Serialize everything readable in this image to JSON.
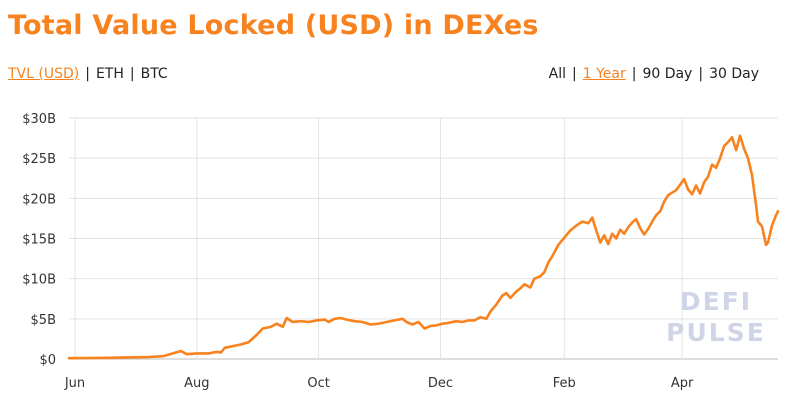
{
  "header": {
    "title": "Total Value Locked (USD) in DEXes"
  },
  "controls": {
    "currency": [
      {
        "label": "TVL (USD)",
        "active": true
      },
      {
        "label": "ETH",
        "active": false
      },
      {
        "label": "BTC",
        "active": false
      }
    ],
    "range": [
      {
        "label": "All",
        "active": false
      },
      {
        "label": "1 Year",
        "active": true
      },
      {
        "label": "90 Day",
        "active": false
      },
      {
        "label": "30 Day",
        "active": false
      }
    ],
    "separator": "|"
  },
  "colors": {
    "accent": "#f7821e",
    "grid": "#e3e3e3",
    "watermark": "#cfd4e6"
  },
  "watermark": {
    "line1": "DEFI",
    "line2": "PULSE"
  },
  "chart_data": {
    "type": "line",
    "title": "Total Value Locked (USD) in DEXes",
    "xlabel": "",
    "ylabel": "",
    "x_unit": "days",
    "xlim": [
      0,
      355
    ],
    "ylim": [
      0,
      30
    ],
    "grid": true,
    "yticks": [
      {
        "value": 0,
        "label": "$0"
      },
      {
        "value": 5,
        "label": "$5B"
      },
      {
        "value": 10,
        "label": "$10B"
      },
      {
        "value": 15,
        "label": "$15B"
      },
      {
        "value": 20,
        "label": "$20B"
      },
      {
        "value": 25,
        "label": "$25B"
      },
      {
        "value": 30,
        "label": "$30B"
      }
    ],
    "xticks": [
      {
        "value": 3,
        "label": "Jun"
      },
      {
        "value": 64,
        "label": "Aug"
      },
      {
        "value": 125,
        "label": "Oct"
      },
      {
        "value": 186,
        "label": "Dec"
      },
      {
        "value": 248,
        "label": "Feb"
      },
      {
        "value": 307,
        "label": "Apr"
      }
    ],
    "series": [
      {
        "values": [
          [
            0,
            0.1
          ],
          [
            10,
            0.12
          ],
          [
            20,
            0.15
          ],
          [
            30,
            0.2
          ],
          [
            40,
            0.25
          ],
          [
            47,
            0.35
          ],
          [
            52,
            0.7
          ],
          [
            56,
            1.0
          ],
          [
            59,
            0.6
          ],
          [
            64,
            0.7
          ],
          [
            70,
            0.7
          ],
          [
            74,
            0.9
          ],
          [
            76,
            0.8
          ],
          [
            78,
            1.4
          ],
          [
            82,
            1.6
          ],
          [
            86,
            1.8
          ],
          [
            90,
            2.1
          ],
          [
            94,
            3.0
          ],
          [
            97,
            3.8
          ],
          [
            101,
            4.0
          ],
          [
            104,
            4.4
          ],
          [
            107,
            4.0
          ],
          [
            109,
            5.1
          ],
          [
            112,
            4.6
          ],
          [
            116,
            4.7
          ],
          [
            120,
            4.6
          ],
          [
            124,
            4.8
          ],
          [
            128,
            4.9
          ],
          [
            130,
            4.6
          ],
          [
            133,
            5.0
          ],
          [
            136,
            5.1
          ],
          [
            139,
            4.9
          ],
          [
            143,
            4.7
          ],
          [
            147,
            4.6
          ],
          [
            151,
            4.3
          ],
          [
            155,
            4.4
          ],
          [
            159,
            4.6
          ],
          [
            163,
            4.8
          ],
          [
            167,
            5.0
          ],
          [
            169,
            4.6
          ],
          [
            172,
            4.3
          ],
          [
            175,
            4.6
          ],
          [
            178,
            3.8
          ],
          [
            181,
            4.1
          ],
          [
            184,
            4.2
          ],
          [
            187,
            4.4
          ],
          [
            190,
            4.5
          ],
          [
            194,
            4.7
          ],
          [
            197,
            4.6
          ],
          [
            200,
            4.8
          ],
          [
            203,
            4.8
          ],
          [
            206,
            5.2
          ],
          [
            209,
            5.0
          ],
          [
            211,
            5.9
          ],
          [
            214,
            6.8
          ],
          [
            217,
            7.9
          ],
          [
            219,
            8.2
          ],
          [
            221,
            7.6
          ],
          [
            224,
            8.4
          ],
          [
            226,
            8.8
          ],
          [
            228,
            9.3
          ],
          [
            231,
            8.9
          ],
          [
            233,
            10.0
          ],
          [
            236,
            10.3
          ],
          [
            238,
            10.8
          ],
          [
            240,
            12.0
          ],
          [
            242,
            12.8
          ],
          [
            245,
            14.2
          ],
          [
            248,
            15.1
          ],
          [
            251,
            16.0
          ],
          [
            254,
            16.6
          ],
          [
            257,
            17.1
          ],
          [
            260,
            16.9
          ],
          [
            262,
            17.6
          ],
          [
            264,
            16.0
          ],
          [
            266,
            14.5
          ],
          [
            268,
            15.4
          ],
          [
            270,
            14.3
          ],
          [
            272,
            15.6
          ],
          [
            274,
            15.0
          ],
          [
            276,
            16.1
          ],
          [
            278,
            15.6
          ],
          [
            280,
            16.4
          ],
          [
            282,
            17.0
          ],
          [
            284,
            17.4
          ],
          [
            286,
            16.3
          ],
          [
            288,
            15.5
          ],
          [
            290,
            16.2
          ],
          [
            292,
            17.1
          ],
          [
            294,
            17.9
          ],
          [
            296,
            18.4
          ],
          [
            298,
            19.6
          ],
          [
            300,
            20.4
          ],
          [
            302,
            20.7
          ],
          [
            304,
            21.0
          ],
          [
            306,
            21.7
          ],
          [
            308,
            22.4
          ],
          [
            310,
            21.1
          ],
          [
            312,
            20.5
          ],
          [
            314,
            21.6
          ],
          [
            316,
            20.6
          ],
          [
            318,
            22.0
          ],
          [
            320,
            22.7
          ],
          [
            322,
            24.2
          ],
          [
            324,
            23.8
          ],
          [
            326,
            25.0
          ],
          [
            328,
            26.5
          ],
          [
            330,
            27.0
          ],
          [
            332,
            27.6
          ],
          [
            334,
            26.0
          ],
          [
            336,
            27.8
          ],
          [
            338,
            26.2
          ],
          [
            340,
            25.0
          ],
          [
            342,
            22.9
          ],
          [
            344,
            19.2
          ],
          [
            345,
            17.1
          ],
          [
            347,
            16.5
          ],
          [
            349,
            14.2
          ],
          [
            350,
            14.5
          ],
          [
            352,
            16.6
          ],
          [
            354,
            17.9
          ],
          [
            355,
            18.4
          ]
        ]
      }
    ]
  }
}
